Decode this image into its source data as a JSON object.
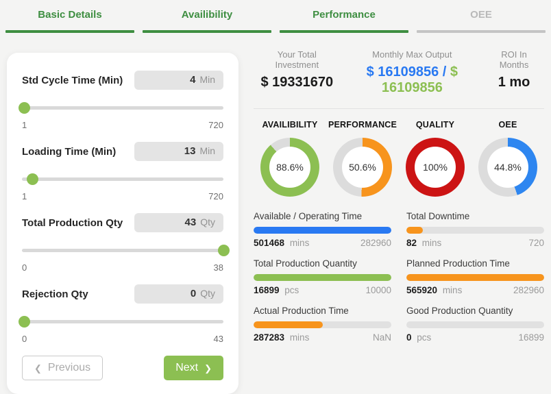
{
  "tabs": [
    {
      "label": "Basic Details",
      "active": true
    },
    {
      "label": "Availibility",
      "active": true
    },
    {
      "label": "Performance",
      "active": true
    },
    {
      "label": "OEE",
      "active": false
    }
  ],
  "form": {
    "fields": [
      {
        "label": "Std Cycle Time (Min)",
        "value": "4",
        "unit": "Min",
        "min": "1",
        "max": "720",
        "percent": 1
      },
      {
        "label": "Loading Time (Min)",
        "value": "13",
        "unit": "Min",
        "min": "1",
        "max": "720",
        "percent": 5
      },
      {
        "label": "Total Production Qty",
        "value": "43",
        "unit": "Qty",
        "min": "0",
        "max": "38",
        "percent": 100
      },
      {
        "label": "Rejection Qty",
        "value": "0",
        "unit": "Qty",
        "min": "0",
        "max": "43",
        "percent": 1
      }
    ],
    "previous_label": "Previous",
    "next_label": "Next",
    "prev_chevron": "❮",
    "next_chevron": "❯"
  },
  "summary": {
    "investment": {
      "label": "Your Total Investment",
      "value": "$ 19331670"
    },
    "monthly": {
      "label": "Monthly Max Output",
      "value_left": "$ 16109856",
      "separator": " / ",
      "value_right": "$ 16109856"
    },
    "roi": {
      "label": "ROI In Months",
      "value": "1 mo"
    }
  },
  "gauges": [
    {
      "title": "AVAILIBILITY",
      "percent_label": "88.6%",
      "percent": 88.6,
      "color": "#8cbf52"
    },
    {
      "title": "PERFORMANCE",
      "percent_label": "50.6%",
      "percent": 50.6,
      "color": "#f7941d"
    },
    {
      "title": "QUALITY",
      "percent_label": "100%",
      "percent": 100,
      "color": "#cc1414"
    },
    {
      "title": "OEE",
      "percent_label": "44.8%",
      "percent": 44.8,
      "color": "#2e86f0"
    }
  ],
  "gauge_track_color": "#dcdcdc",
  "metrics": [
    {
      "label": "Available / Operating Time",
      "value": "501468",
      "unit": "mins",
      "max": "282960",
      "percent": 100,
      "color": "#2979f2"
    },
    {
      "label": "Total Downtime",
      "value": "82",
      "unit": "mins",
      "max": "720",
      "percent": 12,
      "color": "#f7941d"
    },
    {
      "label": "Total Production Quantity",
      "value": "16899",
      "unit": "pcs",
      "max": "10000",
      "percent": 100,
      "color": "#8cbf52"
    },
    {
      "label": "Planned Production Time",
      "value": "565920",
      "unit": "mins",
      "max": "282960",
      "percent": 100,
      "color": "#f7941d"
    },
    {
      "label": "Actual Production Time",
      "value": "287283",
      "unit": "mins",
      "max": "NaN",
      "percent": 50,
      "color": "#f7941d"
    },
    {
      "label": "Good Production Quantity",
      "value": "0",
      "unit": "pcs",
      "max": "16899",
      "percent": 0,
      "color": "#8cbf52"
    }
  ]
}
